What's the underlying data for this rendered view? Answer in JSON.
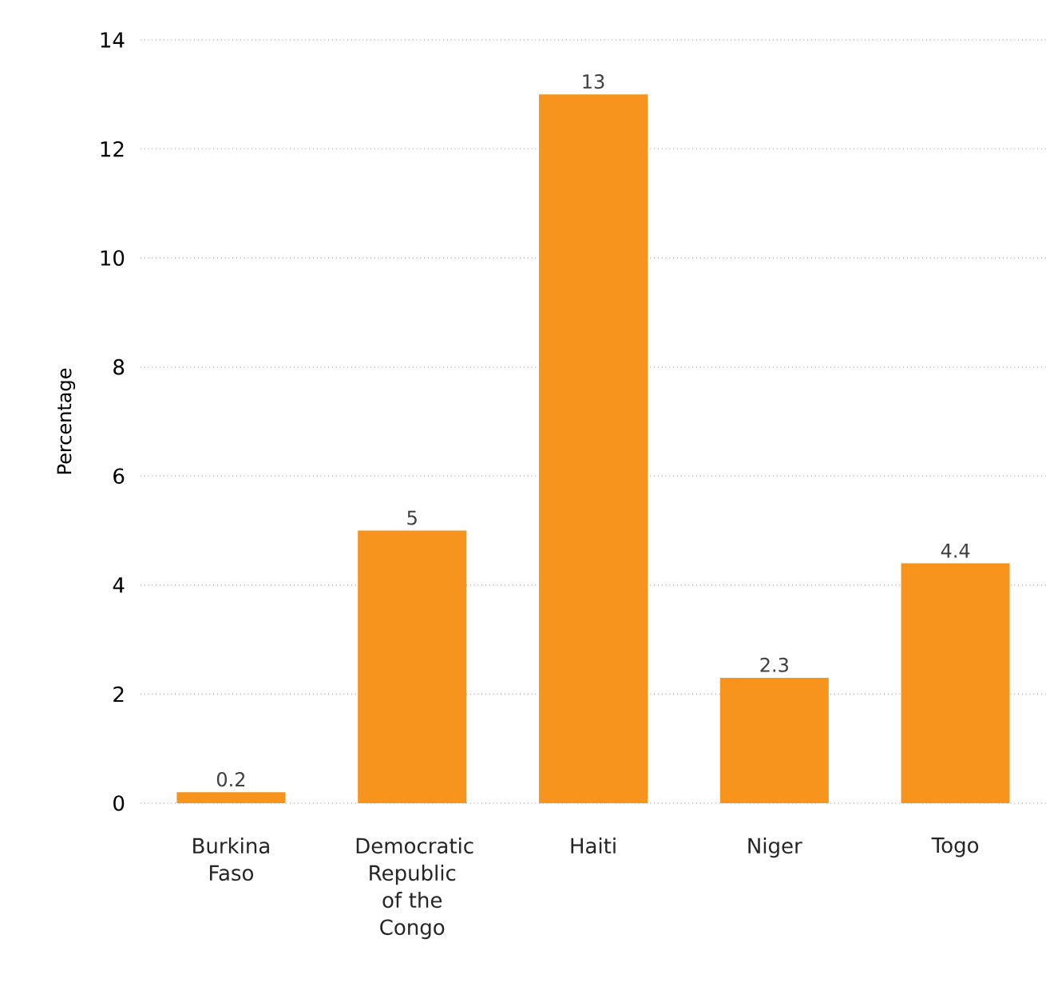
{
  "chart_data": {
    "type": "bar",
    "ylabel": "Percentage",
    "categories": [
      "Burkina Faso",
      "Democratic Republic of the Congo",
      "Haiti",
      "Niger",
      "Togo"
    ],
    "values": [
      0.2,
      5,
      13,
      2.3,
      4.4
    ],
    "color": "#f7941d",
    "ylim": [
      0,
      14
    ],
    "yticks": [
      0,
      2,
      4,
      6,
      8,
      10,
      12,
      14
    ],
    "grid": "y",
    "data_labels": true
  }
}
